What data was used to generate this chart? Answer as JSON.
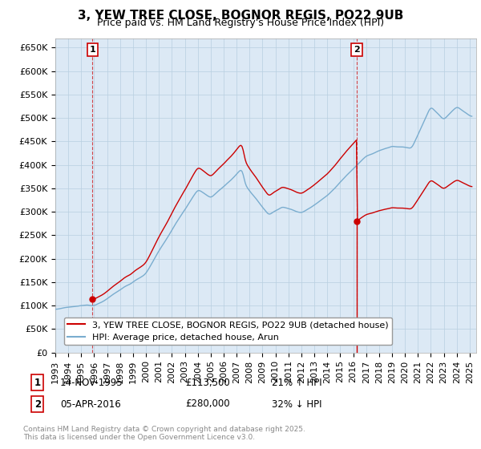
{
  "title": "3, YEW TREE CLOSE, BOGNOR REGIS, PO22 9UB",
  "subtitle": "Price paid vs. HM Land Registry's House Price Index (HPI)",
  "sale1_date": "14-NOV-1995",
  "sale1_price": 113500,
  "sale1_hpi_pct": "21% ↑ HPI",
  "sale2_date": "05-APR-2016",
  "sale2_price": 280000,
  "sale2_hpi_pct": "32% ↓ HPI",
  "sale1_year": 1995.87,
  "sale2_year": 2016.27,
  "legend1": "3, YEW TREE CLOSE, BOGNOR REGIS, PO22 9UB (detached house)",
  "legend2": "HPI: Average price, detached house, Arun",
  "footer": "Contains HM Land Registry data © Crown copyright and database right 2025.\nThis data is licensed under the Open Government Licence v3.0.",
  "ylabel_ticks": [
    "£0",
    "£50K",
    "£100K",
    "£150K",
    "£200K",
    "£250K",
    "£300K",
    "£350K",
    "£400K",
    "£450K",
    "£500K",
    "£550K",
    "£600K",
    "£650K"
  ],
  "ytick_vals": [
    0,
    50000,
    100000,
    150000,
    200000,
    250000,
    300000,
    350000,
    400000,
    450000,
    500000,
    550000,
    600000,
    650000
  ],
  "ylim": [
    0,
    670000
  ],
  "xlim_start": 1993.0,
  "xlim_end": 2025.5,
  "hpi_color": "#7aadcf",
  "price_color": "#cc0000",
  "plot_bg_color": "#dce9f5",
  "background_color": "#ffffff",
  "grid_color": "#b8cfe0",
  "title_fontsize": 11,
  "subtitle_fontsize": 9,
  "tick_fontsize": 8,
  "legend_fontsize": 8,
  "annotation_fontsize": 8.5
}
